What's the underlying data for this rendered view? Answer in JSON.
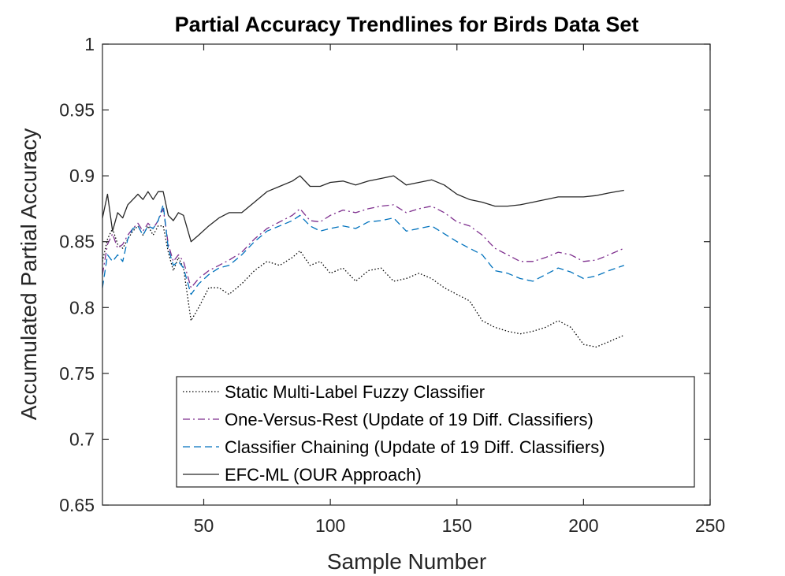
{
  "chart_data": {
    "type": "line",
    "title": "Partial Accuracy Trendlines for Birds Data Set",
    "xlabel": "Sample Number",
    "ylabel": "Accumulated Partial Accuracy",
    "xlim": [
      10,
      250
    ],
    "ylim": [
      0.65,
      1
    ],
    "xticks": [
      50,
      100,
      150,
      200,
      250
    ],
    "yticks": [
      0.65,
      0.7,
      0.75,
      0.8,
      0.85,
      0.9,
      0.95,
      1
    ],
    "xtick_labels": [
      "50",
      "100",
      "150",
      "200",
      "250"
    ],
    "ytick_labels": [
      "0.65",
      "0.7",
      "0.75",
      "0.8",
      "0.85",
      "0.9",
      "0.95",
      "1"
    ],
    "grid": false,
    "legend_position": "bottom-center",
    "series": [
      {
        "name": "Static Multi-Label Fuzzy Classifier",
        "color": "#000000",
        "dash": "dotted",
        "x": [
          10,
          12,
          14,
          16,
          18,
          20,
          22,
          24,
          26,
          28,
          30,
          32,
          34,
          36,
          38,
          40,
          42,
          45,
          48,
          52,
          56,
          60,
          65,
          70,
          75,
          80,
          85,
          88,
          92,
          96,
          100,
          105,
          110,
          115,
          120,
          125,
          130,
          135,
          140,
          145,
          150,
          155,
          160,
          165,
          170,
          175,
          180,
          185,
          190,
          195,
          200,
          205,
          210,
          216
        ],
        "y": [
          0.835,
          0.852,
          0.86,
          0.848,
          0.845,
          0.852,
          0.858,
          0.862,
          0.855,
          0.862,
          0.855,
          0.862,
          0.862,
          0.842,
          0.828,
          0.838,
          0.83,
          0.79,
          0.8,
          0.815,
          0.815,
          0.81,
          0.818,
          0.828,
          0.835,
          0.832,
          0.838,
          0.843,
          0.832,
          0.835,
          0.826,
          0.83,
          0.82,
          0.828,
          0.83,
          0.82,
          0.822,
          0.826,
          0.822,
          0.815,
          0.81,
          0.805,
          0.79,
          0.785,
          0.782,
          0.78,
          0.782,
          0.785,
          0.79,
          0.785,
          0.772,
          0.77,
          0.774,
          0.779
        ]
      },
      {
        "name": "One-Versus-Rest (Update of 19 Diff. Classifiers)",
        "color": "#7E2F8E",
        "dash": "dashdot",
        "x": [
          10,
          12,
          14,
          16,
          18,
          20,
          22,
          24,
          26,
          28,
          30,
          32,
          34,
          36,
          38,
          40,
          42,
          45,
          48,
          52,
          56,
          60,
          65,
          70,
          75,
          80,
          85,
          88,
          92,
          96,
          100,
          105,
          110,
          115,
          120,
          125,
          130,
          135,
          140,
          145,
          150,
          155,
          160,
          165,
          170,
          175,
          180,
          185,
          190,
          195,
          200,
          205,
          210,
          216
        ],
        "y": [
          0.825,
          0.848,
          0.856,
          0.845,
          0.848,
          0.855,
          0.86,
          0.864,
          0.858,
          0.864,
          0.86,
          0.866,
          0.875,
          0.848,
          0.835,
          0.84,
          0.835,
          0.815,
          0.822,
          0.828,
          0.832,
          0.836,
          0.842,
          0.852,
          0.86,
          0.865,
          0.87,
          0.875,
          0.866,
          0.865,
          0.87,
          0.874,
          0.872,
          0.875,
          0.877,
          0.878,
          0.872,
          0.875,
          0.877,
          0.872,
          0.865,
          0.862,
          0.855,
          0.845,
          0.84,
          0.835,
          0.835,
          0.838,
          0.842,
          0.84,
          0.835,
          0.836,
          0.84,
          0.845
        ]
      },
      {
        "name": "Classifier Chaining (Update of 19 Diff. Classifiers)",
        "color": "#0072BD",
        "dash": "dashed",
        "x": [
          10,
          12,
          14,
          16,
          18,
          20,
          22,
          24,
          26,
          28,
          30,
          32,
          34,
          36,
          38,
          40,
          42,
          45,
          48,
          52,
          56,
          60,
          65,
          70,
          75,
          80,
          85,
          88,
          92,
          96,
          100,
          105,
          110,
          115,
          120,
          125,
          130,
          135,
          140,
          145,
          150,
          155,
          160,
          165,
          170,
          175,
          180,
          185,
          190,
          195,
          200,
          205,
          210,
          216
        ],
        "y": [
          0.815,
          0.84,
          0.835,
          0.84,
          0.835,
          0.852,
          0.86,
          0.862,
          0.855,
          0.862,
          0.86,
          0.866,
          0.878,
          0.845,
          0.832,
          0.835,
          0.83,
          0.81,
          0.818,
          0.825,
          0.83,
          0.832,
          0.84,
          0.85,
          0.858,
          0.862,
          0.866,
          0.87,
          0.862,
          0.858,
          0.86,
          0.862,
          0.86,
          0.865,
          0.866,
          0.868,
          0.858,
          0.86,
          0.862,
          0.856,
          0.85,
          0.845,
          0.84,
          0.828,
          0.826,
          0.822,
          0.82,
          0.825,
          0.83,
          0.827,
          0.822,
          0.824,
          0.828,
          0.832
        ]
      },
      {
        "name": "EFC-ML (OUR Approach)",
        "color": "#262626",
        "dash": "solid",
        "x": [
          10,
          12,
          14,
          16,
          18,
          20,
          22,
          24,
          26,
          28,
          30,
          32,
          34,
          36,
          38,
          40,
          42,
          45,
          48,
          52,
          56,
          60,
          65,
          70,
          75,
          80,
          85,
          88,
          92,
          96,
          100,
          105,
          110,
          115,
          120,
          125,
          130,
          135,
          140,
          145,
          150,
          155,
          160,
          165,
          170,
          175,
          180,
          185,
          190,
          195,
          200,
          205,
          210,
          216
        ],
        "y": [
          0.868,
          0.886,
          0.858,
          0.872,
          0.868,
          0.878,
          0.882,
          0.886,
          0.882,
          0.888,
          0.882,
          0.888,
          0.888,
          0.87,
          0.866,
          0.872,
          0.87,
          0.85,
          0.855,
          0.862,
          0.868,
          0.872,
          0.872,
          0.88,
          0.888,
          0.892,
          0.896,
          0.9,
          0.892,
          0.892,
          0.895,
          0.896,
          0.893,
          0.896,
          0.898,
          0.9,
          0.893,
          0.895,
          0.897,
          0.893,
          0.886,
          0.882,
          0.88,
          0.877,
          0.877,
          0.878,
          0.88,
          0.882,
          0.884,
          0.884,
          0.884,
          0.885,
          0.887,
          0.889
        ]
      }
    ]
  }
}
